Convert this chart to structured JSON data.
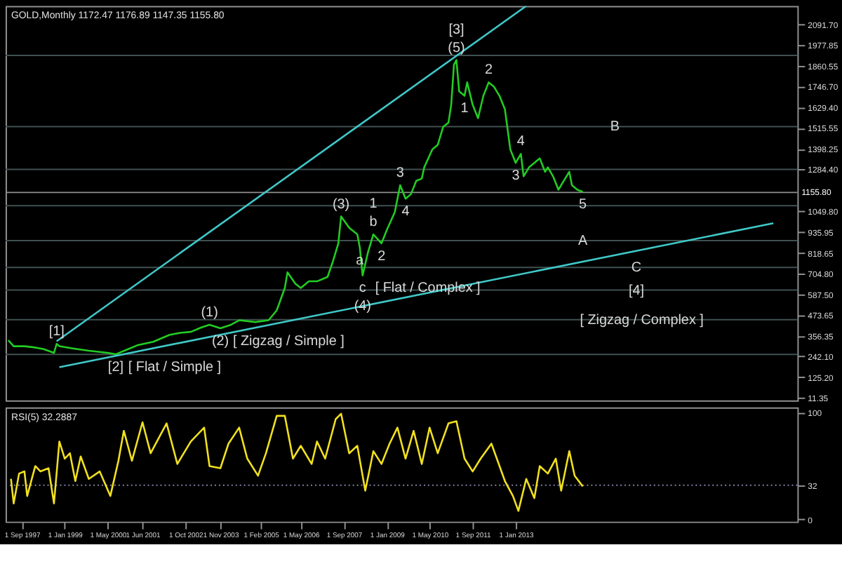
{
  "chart_data": [
    {
      "type": "line",
      "title": "GOLD,Monthly  1172.47 1176.89 1147.35 1155.80",
      "tick_labels": "y",
      "grid": false,
      "xlim": [
        "1997-03",
        "2021-10"
      ],
      "ylim": [
        -4,
        2196
      ],
      "yticks": [
        {
          "value": 2091.7,
          "label": "2091.70"
        },
        {
          "value": 1977.85,
          "label": "1977.85"
        },
        {
          "value": 1860.55,
          "label": "1860.55"
        },
        {
          "value": 1746.7,
          "label": "1746.70"
        },
        {
          "value": 1629.4,
          "label": "1629.40"
        },
        {
          "value": 1515.55,
          "label": "1515.55"
        },
        {
          "value": 1398.25,
          "label": "1398.25"
        },
        {
          "value": 1284.4,
          "label": "1284.40"
        },
        {
          "value": 1049.8,
          "label": "1049.80"
        },
        {
          "value": 935.95,
          "label": "935.95"
        },
        {
          "value": 818.65,
          "label": "818.65"
        },
        {
          "value": 704.8,
          "label": "704.80"
        },
        {
          "value": 587.5,
          "label": "587.50"
        },
        {
          "value": 473.65,
          "label": "473.65"
        },
        {
          "value": 356.35,
          "label": "356.35"
        },
        {
          "value": 242.1,
          "label": "242.10"
        },
        {
          "value": 125.2,
          "label": "125.20"
        },
        {
          "value": 11.35,
          "label": "11.35"
        }
      ],
      "x": [
        "1997-04",
        "1997-06",
        "1997-10",
        "1998-01",
        "1998-05",
        "1998-09",
        "1998-10",
        "1998-11",
        "1999-04",
        "1999-10",
        "2000-05",
        "2000-08",
        "2000-12",
        "2001-04",
        "2001-10",
        "2002-04",
        "2002-08",
        "2002-12",
        "2003-04",
        "2003-07",
        "2003-11",
        "2004-03",
        "2004-06",
        "2004-12",
        "2005-05",
        "2005-08",
        "2005-11",
        "2005-12",
        "2006-03",
        "2006-05",
        "2006-08",
        "2006-11",
        "2007-03",
        "2007-05",
        "2007-07",
        "2007-08",
        "2007-11",
        "2008-02",
        "2008-03",
        "2008-04",
        "2008-06",
        "2008-08",
        "2008-11",
        "2009-01",
        "2009-04",
        "2009-06",
        "2009-08",
        "2009-10",
        "2009-12",
        "2010-02",
        "2010-03",
        "2010-06",
        "2010-08",
        "2010-10",
        "2010-12",
        "2011-01",
        "2011-02",
        "2011-03",
        "2011-04",
        "2011-06",
        "2011-07",
        "2011-09",
        "2011-11",
        "2012-01",
        "2012-03",
        "2012-05",
        "2012-07",
        "2012-09",
        "2012-11",
        "2013-01",
        "2013-03",
        "2013-04",
        "2013-06",
        "2013-08",
        "2013-10",
        "2013-12",
        "2014-01",
        "2014-03",
        "2014-05",
        "2014-07",
        "2014-09",
        "2014-10",
        "2014-12",
        "2015-02"
      ],
      "series": [
        {
          "color": "#22cc22",
          "values": [
            331,
            298,
            298,
            293,
            283,
            261,
            311,
            298,
            286,
            273,
            261,
            253,
            278,
            303,
            323,
            361,
            373,
            378,
            403,
            418,
            398,
            418,
            443,
            433,
            443,
            498,
            623,
            710,
            647,
            623,
            660,
            660,
            685,
            772,
            872,
            1022,
            959,
            922,
            847,
            693,
            822,
            922,
            872,
            947,
            1046,
            1196,
            1121,
            1146,
            1221,
            1233,
            1296,
            1396,
            1421,
            1521,
            1546,
            1645,
            1869,
            1894,
            1720,
            1695,
            1770,
            1645,
            1570,
            1695,
            1770,
            1745,
            1695,
            1620,
            1396,
            1321,
            1371,
            1246,
            1296,
            1321,
            1346,
            1271,
            1296,
            1246,
            1171,
            1221,
            1271,
            1196,
            1171,
            1159
          ]
        },
        {
          "type": "line",
          "color": "#40c8c8",
          "x": [
            "1998-10",
            "2013-05"
          ],
          "values": [
            326,
            2196
          ]
        },
        {
          "type": "line",
          "color": "#40c8c8",
          "x": [
            "1998-11",
            "2021-01"
          ],
          "values": [
            181,
            984
          ]
        }
      ],
      "ref_lines": [
        {
          "axis": "y",
          "value": 1920,
          "color": "#405050"
        },
        {
          "axis": "y",
          "value": 1523,
          "color": "#405050"
        },
        {
          "axis": "y",
          "value": 1284,
          "color": "#405050"
        },
        {
          "axis": "y",
          "value": 1082,
          "color": "#405050"
        },
        {
          "axis": "y",
          "value": 887,
          "color": "#405050"
        },
        {
          "axis": "y",
          "value": 738,
          "color": "#405050"
        },
        {
          "axis": "y",
          "value": 611,
          "color": "#405050"
        },
        {
          "axis": "y",
          "value": 446,
          "color": "#405050"
        },
        {
          "axis": "y",
          "value": 252,
          "color": "#405050"
        },
        {
          "axis": "y",
          "value": 1155.8,
          "label": "1155.80",
          "color": "#909090"
        }
      ],
      "annotations": [
        {
          "text": "[1]",
          "x": "1998-10",
          "y": 311
        },
        {
          "text": "[2]",
          "x": "2000-08",
          "y": 253
        },
        "[ Flat / Simple ]",
        {
          "text": "(1)",
          "x": "2003-07",
          "y": 418
        },
        {
          "text": "(2)",
          "x": "2003-11",
          "y": 398
        },
        "[ Zigzag / Simple ]",
        {
          "text": "(3)",
          "x": "2007-08",
          "y": 1022
        },
        {
          "text": "b",
          "x": "2008-08",
          "y": 922
        },
        {
          "text": "a",
          "x": "2008-03",
          "y": 847
        },
        {
          "text": "c",
          "x": "2008-04",
          "y": 693
        },
        "[ Flat / Complex ]",
        {
          "text": "(4)",
          "x": "2008-04",
          "y": 693
        },
        {
          "text": "1",
          "x": "2008-08",
          "y": 922
        },
        {
          "text": "2",
          "x": "2008-11",
          "y": 872
        },
        {
          "text": "3",
          "x": "2009-06",
          "y": 1196
        },
        {
          "text": "4",
          "x": "2009-08",
          "y": 1121
        },
        {
          "text": "(5)",
          "x": "2011-03",
          "y": 1894
        },
        {
          "text": "[3]",
          "x": "2011-03",
          "y": 1894
        },
        {
          "text": "1",
          "x": "2011-06",
          "y": 1695
        },
        {
          "text": "2",
          "x": "2012-03",
          "y": 1770
        },
        {
          "text": "3",
          "x": "2013-01",
          "y": 1321
        },
        {
          "text": "4",
          "x": "2013-03",
          "y": 1371
        },
        {
          "text": "5",
          "x": "2015-02",
          "y": 1159
        },
        {
          "text": "A",
          "x": "2015-02",
          "y": 887
        },
        {
          "text": "B",
          "x": "2016-02",
          "y": 1523
        },
        {
          "text": "C",
          "x": "2016-10",
          "y": 738
        },
        {
          "text": "[4]",
          "x": "2016-10",
          "y": 611
        },
        {
          "text": "[ Zigzag / Complex ]",
          "x": "2016-12",
          "y": 446
        }
      ]
    },
    {
      "type": "line",
      "title": "RSI(5) 32.2887",
      "grid": false,
      "xlim": [
        "1997-03",
        "2021-10"
      ],
      "ylim": [
        -2,
        105
      ],
      "yticks": [
        0,
        32,
        100
      ],
      "xticks": [
        {
          "value": "1997-09",
          "label": "1 Sep 1997"
        },
        {
          "value": "1999-01",
          "label": "1 Jan 1999"
        },
        {
          "value": "2000-05",
          "label": "1 May 2000"
        },
        {
          "value": "2001-06",
          "label": "1 Jun 2001"
        },
        {
          "value": "2002-10",
          "label": "1 Oct 2002"
        },
        {
          "value": "2003-11",
          "label": "1 Nov 2003"
        },
        {
          "value": "2005-02",
          "label": "1 Feb 2005"
        },
        {
          "value": "2006-05",
          "label": "1 May 2006"
        },
        {
          "value": "2007-09",
          "label": "1 Sep 2007"
        },
        {
          "value": "2009-01",
          "label": "1 Jan 2009"
        },
        {
          "value": "2010-05",
          "label": "1 May 2010"
        },
        {
          "value": "2011-09",
          "label": "1 Sep 2011"
        },
        {
          "value": "2013-01",
          "label": "1 Jan 2013"
        }
      ],
      "x": [
        "1997-05",
        "1997-06",
        "1997-08",
        "1997-10",
        "1997-11",
        "1998-02",
        "1998-04",
        "1998-07",
        "1998-09",
        "1998-11",
        "1999-01",
        "1999-03",
        "1999-05",
        "1999-07",
        "1999-10",
        "2000-02",
        "2000-06",
        "2000-09",
        "2000-11",
        "2001-02",
        "2001-06",
        "2001-09",
        "2002-03",
        "2002-07",
        "2002-12",
        "2003-05",
        "2003-07",
        "2003-11",
        "2004-02",
        "2004-06",
        "2004-09",
        "2005-01",
        "2005-04",
        "2005-08",
        "2005-11",
        "2006-02",
        "2006-05",
        "2006-09",
        "2006-11",
        "2007-02",
        "2007-06",
        "2007-08",
        "2007-11",
        "2008-02",
        "2008-05",
        "2008-08",
        "2008-11",
        "2009-02",
        "2009-05",
        "2009-08",
        "2009-11",
        "2010-02",
        "2010-05",
        "2010-08",
        "2010-12",
        "2011-03",
        "2011-06",
        "2011-09",
        "2011-12",
        "2012-04",
        "2012-09",
        "2012-12",
        "2013-02",
        "2013-05",
        "2013-08",
        "2013-10",
        "2014-01",
        "2014-04",
        "2014-06",
        "2014-09",
        "2014-11",
        "2015-02"
      ],
      "series": [
        {
          "color": "#f0e020",
          "values": [
            38,
            15,
            43,
            45,
            22,
            50,
            45,
            48,
            15,
            73,
            57,
            62,
            36,
            59,
            38,
            45,
            22,
            55,
            83,
            55,
            91,
            62,
            90,
            52,
            73,
            86,
            50,
            48,
            71,
            86,
            57,
            41,
            62,
            97,
            97,
            57,
            69,
            52,
            73,
            57,
            94,
            99,
            62,
            69,
            27,
            64,
            52,
            71,
            86,
            57,
            83,
            52,
            86,
            62,
            90,
            92,
            57,
            45,
            57,
            71,
            36,
            22,
            8,
            38,
            20,
            50,
            43,
            57,
            27,
            64,
            41,
            31
          ]
        }
      ],
      "ref_lines": [
        {
          "axis": "y",
          "value": 32,
          "color": "#8080a0",
          "line_style": "dotted"
        }
      ]
    }
  ]
}
